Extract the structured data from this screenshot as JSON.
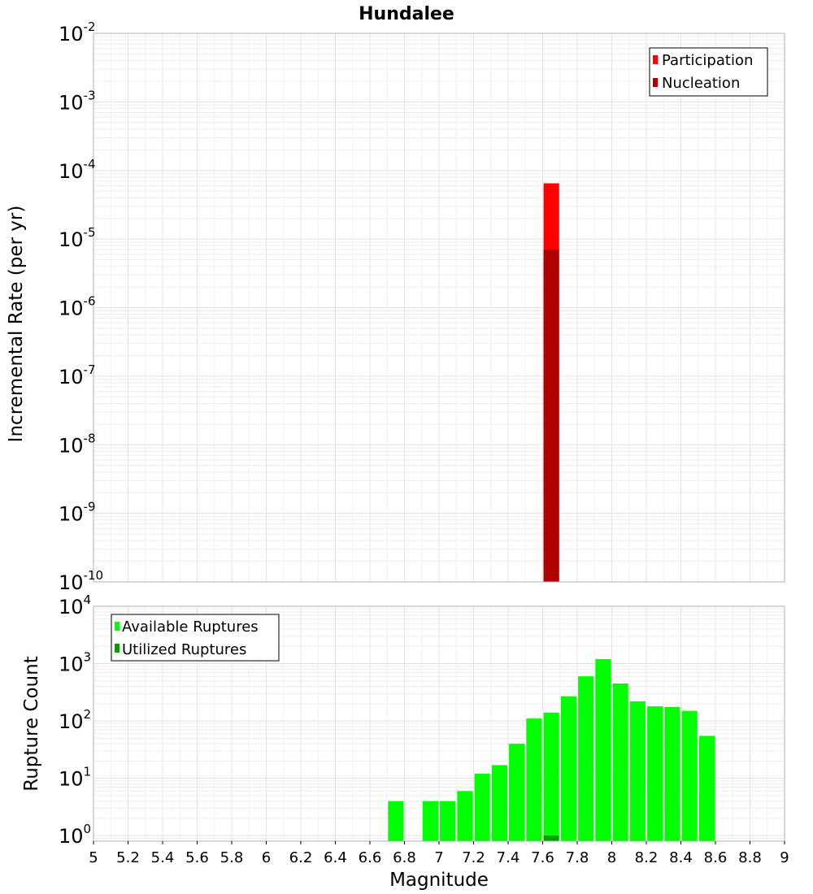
{
  "chart_data": [
    {
      "type": "bar",
      "title": "Hundalee",
      "ylabel": "Incremental Rate (per yr)",
      "xlabel": "",
      "yscale": "log",
      "ylim": [
        1e-10,
        0.01
      ],
      "xlim": [
        5,
        9
      ],
      "grid": true,
      "legend_position": "top-right",
      "ytick_labels": [
        {
          "base": "10",
          "exp": "-10"
        },
        {
          "base": "10",
          "exp": "-9"
        },
        {
          "base": "10",
          "exp": "-8"
        },
        {
          "base": "10",
          "exp": "-7"
        },
        {
          "base": "10",
          "exp": "-6"
        },
        {
          "base": "10",
          "exp": "-5"
        },
        {
          "base": "10",
          "exp": "-4"
        },
        {
          "base": "10",
          "exp": "-3"
        },
        {
          "base": "10",
          "exp": "-2"
        }
      ],
      "series": [
        {
          "name": "Participation",
          "color": "#ff0000",
          "x": [
            7.65
          ],
          "values": [
            6.5e-05
          ]
        },
        {
          "name": "Nucleation",
          "color": "#b00000",
          "x": [
            7.65
          ],
          "values": [
            7e-06
          ]
        }
      ]
    },
    {
      "type": "bar",
      "title": "",
      "ylabel": "Rupture Count",
      "xlabel": "Magnitude",
      "yscale": "log",
      "ylim": [
        0.8,
        10000
      ],
      "xlim": [
        5,
        9
      ],
      "grid": true,
      "legend_position": "top-left",
      "xticks": [
        "5",
        "5.2",
        "5.4",
        "5.6",
        "5.8",
        "6",
        "6.2",
        "6.4",
        "6.6",
        "6.8",
        "7",
        "7.2",
        "7.4",
        "7.6",
        "7.8",
        "8",
        "8.2",
        "8.4",
        "8.6",
        "8.8",
        "9"
      ],
      "ytick_labels": [
        {
          "base": "10",
          "exp": "0"
        },
        {
          "base": "10",
          "exp": "1"
        },
        {
          "base": "10",
          "exp": "2"
        },
        {
          "base": "10",
          "exp": "3"
        },
        {
          "base": "10",
          "exp": "4"
        }
      ],
      "series": [
        {
          "name": "Available Ruptures",
          "color": "#00ff00",
          "x": [
            6.75,
            6.95,
            7.05,
            7.15,
            7.25,
            7.35,
            7.45,
            7.55,
            7.65,
            7.75,
            7.85,
            7.95,
            8.05,
            8.15,
            8.25,
            8.35,
            8.45,
            8.55
          ],
          "values": [
            4,
            4,
            4,
            6,
            12,
            17,
            40,
            110,
            140,
            270,
            600,
            1200,
            450,
            220,
            180,
            175,
            150,
            55
          ]
        },
        {
          "name": "Utilized Ruptures",
          "color": "#00a000",
          "x": [
            7.65
          ],
          "values": [
            1
          ]
        }
      ]
    }
  ]
}
